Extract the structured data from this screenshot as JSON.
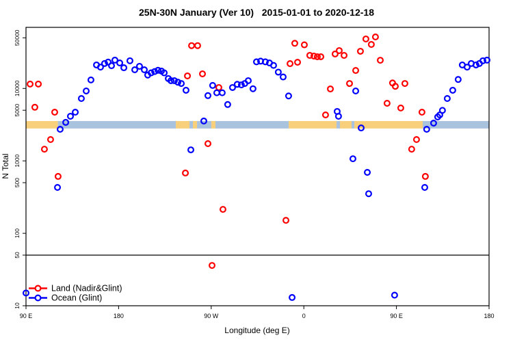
{
  "chart_data": {
    "type": "scatter",
    "title": "25N-30N January (Ver 10)   2015-01-01 to 2020-12-18",
    "xlabel": "Longitude (deg E)",
    "ylabel": "N Total",
    "y_scale": "log10",
    "ylim": [
      10,
      69700
    ],
    "y_ticks": [
      10,
      50,
      100,
      500,
      1000,
      5000,
      10000,
      50000
    ],
    "x_axis_span_deg": 450,
    "x_ticks": [
      {
        "pos": 0,
        "label": "90 E"
      },
      {
        "pos": 90,
        "label": "180"
      },
      {
        "pos": 180,
        "label": "90 W"
      },
      {
        "pos": 270,
        "label": "0"
      },
      {
        "pos": 360,
        "label": "90 E"
      },
      {
        "pos": 450,
        "label": "180"
      }
    ],
    "reference_line_n": 50,
    "grid": "off",
    "legend_position": "bottom-left",
    "legend": [
      {
        "label": "Land (Nadir&Glint)",
        "color": "#ff0000"
      },
      {
        "label": "Ocean (Glint)",
        "color": "#0000ff"
      }
    ],
    "land_ocean_band": {
      "n_top": 3550,
      "n_bottom": 2800,
      "land_color": "#f8cf7a",
      "ocean_color": "#a9c2de",
      "segments": [
        {
          "from_deg": 0,
          "to_deg": 31,
          "surface": "land"
        },
        {
          "from_deg": 31,
          "to_deg": 145.6,
          "surface": "ocean"
        },
        {
          "from_deg": 145.6,
          "to_deg": 158.9,
          "surface": "land"
        },
        {
          "from_deg": 158.9,
          "to_deg": 162.2,
          "surface": "ocean"
        },
        {
          "from_deg": 162.2,
          "to_deg": 166.2,
          "surface": "land"
        },
        {
          "from_deg": 166.2,
          "to_deg": 180.1,
          "surface": "ocean"
        },
        {
          "from_deg": 180.1,
          "to_deg": 184.1,
          "surface": "land"
        },
        {
          "from_deg": 184.1,
          "to_deg": 255.3,
          "surface": "ocean"
        },
        {
          "from_deg": 255.3,
          "to_deg": 301.8,
          "surface": "land"
        },
        {
          "from_deg": 301.8,
          "to_deg": 305.1,
          "surface": "ocean"
        },
        {
          "from_deg": 305.1,
          "to_deg": 316.4,
          "surface": "land"
        },
        {
          "from_deg": 316.4,
          "to_deg": 319.1,
          "surface": "ocean"
        },
        {
          "from_deg": 319.1,
          "to_deg": 385.5,
          "surface": "land"
        },
        {
          "from_deg": 385.5,
          "to_deg": 450,
          "surface": "ocean"
        }
      ]
    },
    "series": [
      {
        "name": "Land (Nadir&Glint)",
        "color": "#ff0000",
        "marker": "open-circle",
        "points": [
          [
            4.0,
            11500
          ],
          [
            12.0,
            11500
          ],
          [
            8.6,
            5500
          ],
          [
            27.9,
            4700
          ],
          [
            23.9,
            1970
          ],
          [
            17.9,
            1450
          ],
          [
            31.2,
            610
          ],
          [
            154.9,
            680
          ],
          [
            156.9,
            14900
          ],
          [
            160.9,
            39000
          ],
          [
            166.8,
            39000
          ],
          [
            171.5,
            15900
          ],
          [
            176.8,
            1730
          ],
          [
            180.8,
            36
          ],
          [
            187.4,
            10300
          ],
          [
            191.4,
            214
          ],
          [
            252.6,
            151
          ],
          [
            256.6,
            22000
          ],
          [
            261.2,
            42000
          ],
          [
            263.9,
            23000
          ],
          [
            270.5,
            40000
          ],
          [
            275.8,
            28600
          ],
          [
            279.8,
            28000
          ],
          [
            283.1,
            27400
          ],
          [
            286.5,
            27400
          ],
          [
            291.1,
            4310
          ],
          [
            295.8,
            9840
          ],
          [
            300.4,
            29900
          ],
          [
            304.4,
            33300
          ],
          [
            309.1,
            28600
          ],
          [
            314.4,
            11700
          ],
          [
            320.4,
            17700
          ],
          [
            325.0,
            32600
          ],
          [
            330.3,
            48200
          ],
          [
            335.6,
            40500
          ],
          [
            339.6,
            51400
          ],
          [
            344.3,
            24500
          ],
          [
            350.9,
            6240
          ],
          [
            356.2,
            11900
          ],
          [
            358.9,
            10700
          ],
          [
            364.2,
            5370
          ],
          [
            368.2,
            11700
          ],
          [
            374.8,
            1450
          ],
          [
            379.5,
            1970
          ],
          [
            384.8,
            4700
          ],
          [
            388.1,
            610
          ]
        ]
      },
      {
        "name": "Ocean (Glint)",
        "color": "#0000ff",
        "marker": "open-circle",
        "points": [
          [
            0,
            15
          ],
          [
            30.6,
            430
          ],
          [
            33.2,
            2730
          ],
          [
            38.6,
            3400
          ],
          [
            43.2,
            4130
          ],
          [
            47.9,
            4700
          ],
          [
            53.8,
            7260
          ],
          [
            58.5,
            9230
          ],
          [
            63.1,
            13100
          ],
          [
            68.5,
            21100
          ],
          [
            72.4,
            19700
          ],
          [
            76.4,
            22100
          ],
          [
            79.8,
            23100
          ],
          [
            83.1,
            20600
          ],
          [
            86.4,
            24600
          ],
          [
            91.1,
            22500
          ],
          [
            95.1,
            19300
          ],
          [
            101.0,
            24100
          ],
          [
            105.7,
            18100
          ],
          [
            110.3,
            20200
          ],
          [
            115.0,
            18100
          ],
          [
            118.3,
            15300
          ],
          [
            121.6,
            16400
          ],
          [
            125.0,
            17100
          ],
          [
            128.3,
            17800
          ],
          [
            131.6,
            17400
          ],
          [
            134.3,
            16400
          ],
          [
            138.3,
            13700
          ],
          [
            140.9,
            12800
          ],
          [
            144.2,
            12800
          ],
          [
            147.6,
            12200
          ],
          [
            150.9,
            11700
          ],
          [
            155.5,
            9440
          ],
          [
            160.2,
            1420
          ],
          [
            172.8,
            3550
          ],
          [
            176.8,
            7960
          ],
          [
            181.4,
            11000
          ],
          [
            185.4,
            8710
          ],
          [
            190.7,
            8710
          ],
          [
            196.0,
            6000
          ],
          [
            200.7,
            10300
          ],
          [
            205.3,
            11400
          ],
          [
            209.3,
            11200
          ],
          [
            212.6,
            11700
          ],
          [
            216.0,
            12800
          ],
          [
            220.6,
            9900
          ],
          [
            224.0,
            23300
          ],
          [
            228.0,
            23800
          ],
          [
            232.6,
            23300
          ],
          [
            236.6,
            22500
          ],
          [
            240.6,
            20800
          ],
          [
            245.2,
            16800
          ],
          [
            249.9,
            14400
          ],
          [
            255.2,
            7880
          ],
          [
            258.6,
            13
          ],
          [
            302.4,
            4810
          ],
          [
            303.7,
            4130
          ],
          [
            317.7,
            1070
          ],
          [
            320.4,
            9230
          ],
          [
            325.7,
            2850
          ],
          [
            331.7,
            694
          ],
          [
            333.0,
            352
          ],
          [
            358.2,
            14
          ],
          [
            387.5,
            430
          ],
          [
            389.4,
            2730
          ],
          [
            396.1,
            3320
          ],
          [
            400.1,
            4040
          ],
          [
            402.1,
            4310
          ],
          [
            404.7,
            4980
          ],
          [
            409.4,
            7260
          ],
          [
            414.7,
            9440
          ],
          [
            420.0,
            13300
          ],
          [
            424.0,
            21100
          ],
          [
            428.7,
            19700
          ],
          [
            432.7,
            22100
          ],
          [
            437.3,
            21100
          ],
          [
            440.6,
            22100
          ],
          [
            444.0,
            24100
          ],
          [
            448.0,
            24600
          ]
        ]
      }
    ]
  }
}
